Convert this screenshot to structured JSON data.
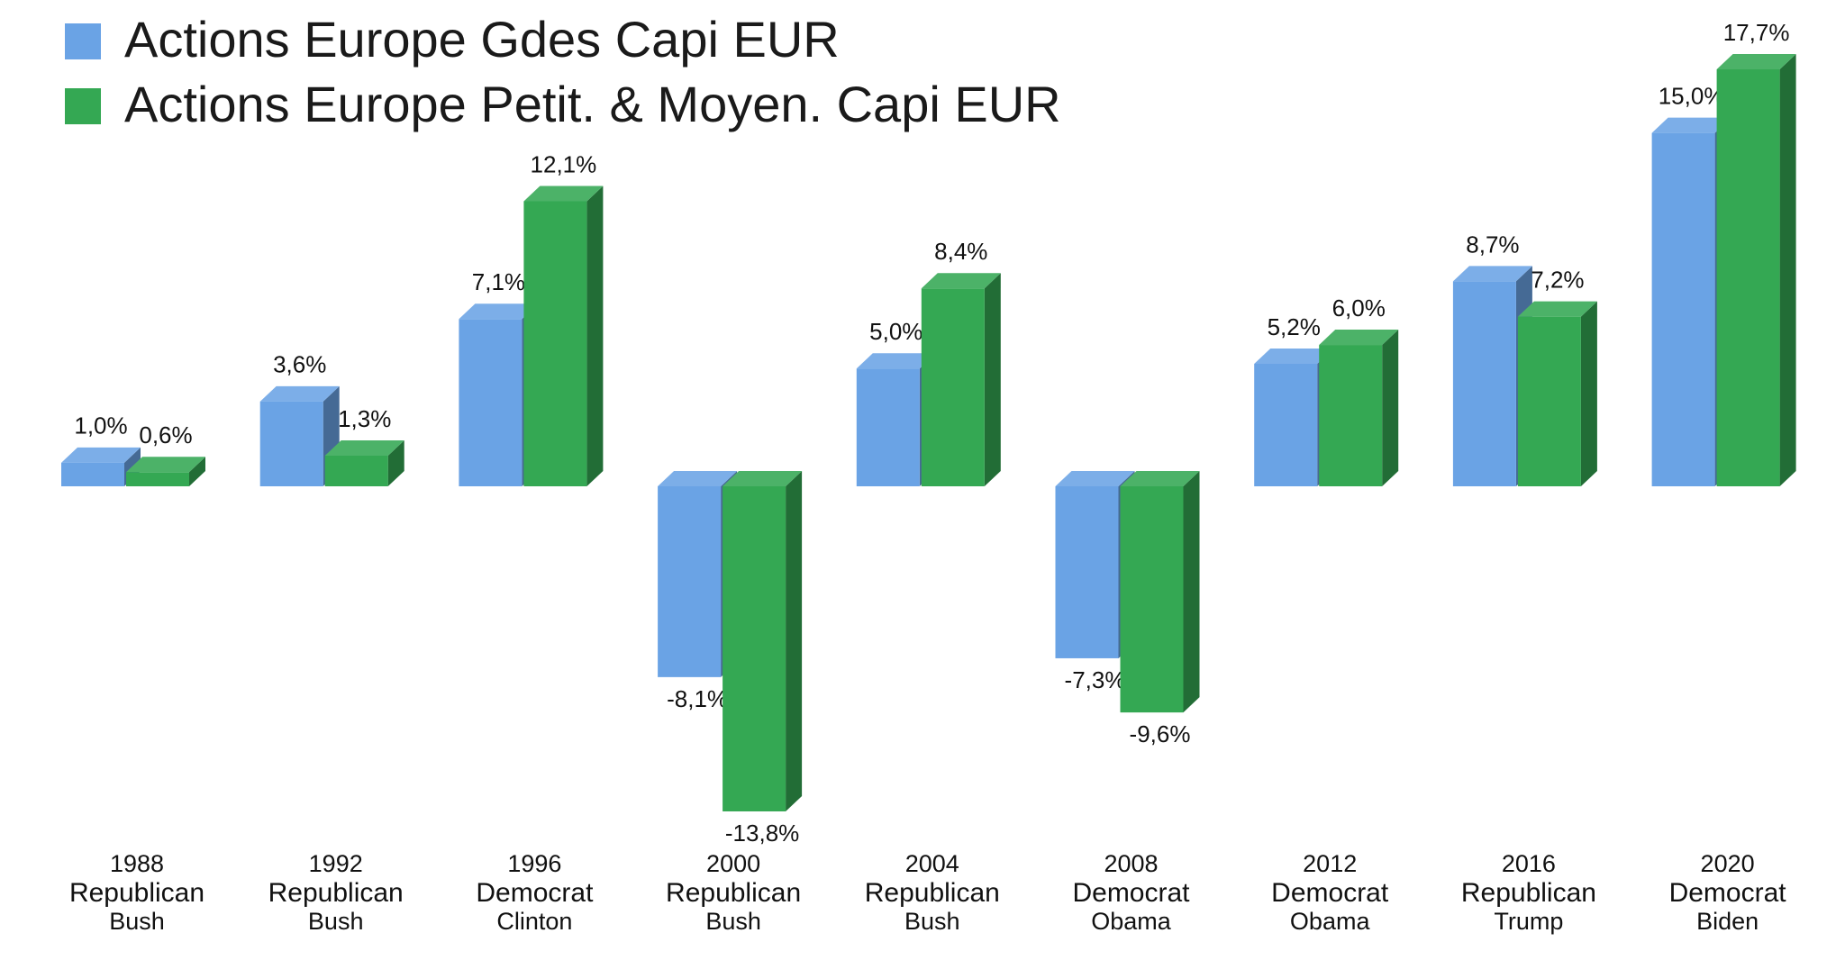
{
  "chart_data": {
    "type": "bar3d",
    "categories": [
      [
        "1988",
        "Republican",
        "Bush"
      ],
      [
        "1992",
        "Republican",
        "Bush"
      ],
      [
        "1996",
        "Democrat",
        "Clinton"
      ],
      [
        "2000",
        "Republican",
        "Bush"
      ],
      [
        "2004",
        "Republican",
        "Bush"
      ],
      [
        "2008",
        "Democrat",
        "Obama"
      ],
      [
        "2012",
        "Democrat",
        "Obama"
      ],
      [
        "2016",
        "Republican",
        "Trump"
      ],
      [
        "2020",
        "Democrat",
        "Biden"
      ]
    ],
    "series": [
      {
        "name": "Actions Europe Gdes Capi EUR",
        "color": "#6aa3e5",
        "values": [
          1.0,
          3.6,
          7.1,
          -8.1,
          5.0,
          -7.3,
          5.2,
          8.7,
          15.0
        ],
        "value_labels": [
          "1,0%",
          "3,6%",
          "7,1%",
          "-8,1%",
          "5,0%",
          "-7,3%",
          "5,2%",
          "8,7%",
          "15,0%"
        ]
      },
      {
        "name": "Actions Europe Petit. & Moyen. Capi EUR",
        "color": "#34a853",
        "values": [
          0.6,
          1.3,
          12.1,
          -13.8,
          8.4,
          -9.6,
          6.0,
          7.2,
          17.7
        ],
        "value_labels": [
          "0,6%",
          "1,3%",
          "12,1%",
          "-13,8%",
          "8,4%",
          "-9,6%",
          "6,0%",
          "7,2%",
          "17,7%"
        ]
      }
    ],
    "legend": "top-left",
    "grid": false
  }
}
